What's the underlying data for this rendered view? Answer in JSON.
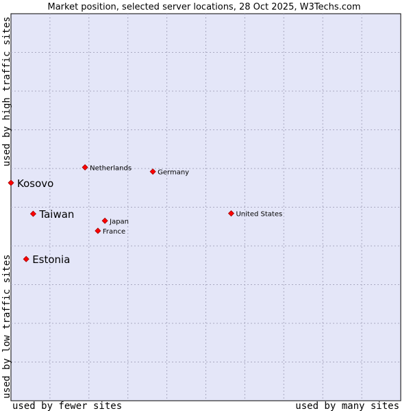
{
  "chart_data": {
    "type": "scatter",
    "title": "Market position, selected server locations, 28 Oct 2025, W3Techs.com",
    "xlabel_left": "used by fewer sites",
    "xlabel_right": "used by many sites",
    "ylabel_bottom": "used by low traffic sites",
    "ylabel_top": "used by high traffic sites",
    "xlim": [
      0,
      100
    ],
    "ylim": [
      0,
      100
    ],
    "grid": true,
    "point_color": "#ff0000",
    "plot_background": "#e4e6f8",
    "points": [
      {
        "label": "Netherlands",
        "x": 19.0,
        "y": 60.3,
        "highlight": false
      },
      {
        "label": "Germany",
        "x": 36.4,
        "y": 59.2,
        "highlight": false
      },
      {
        "label": "Kosovo",
        "x": 0.0,
        "y": 56.3,
        "highlight": true
      },
      {
        "label": "Taiwan",
        "x": 5.7,
        "y": 48.3,
        "highlight": true
      },
      {
        "label": "United States",
        "x": 56.5,
        "y": 48.4,
        "highlight": false
      },
      {
        "label": "Japan",
        "x": 24.1,
        "y": 46.5,
        "highlight": false
      },
      {
        "label": "France",
        "x": 22.3,
        "y": 43.9,
        "highlight": false
      },
      {
        "label": "Estonia",
        "x": 3.9,
        "y": 36.6,
        "highlight": true
      }
    ]
  }
}
